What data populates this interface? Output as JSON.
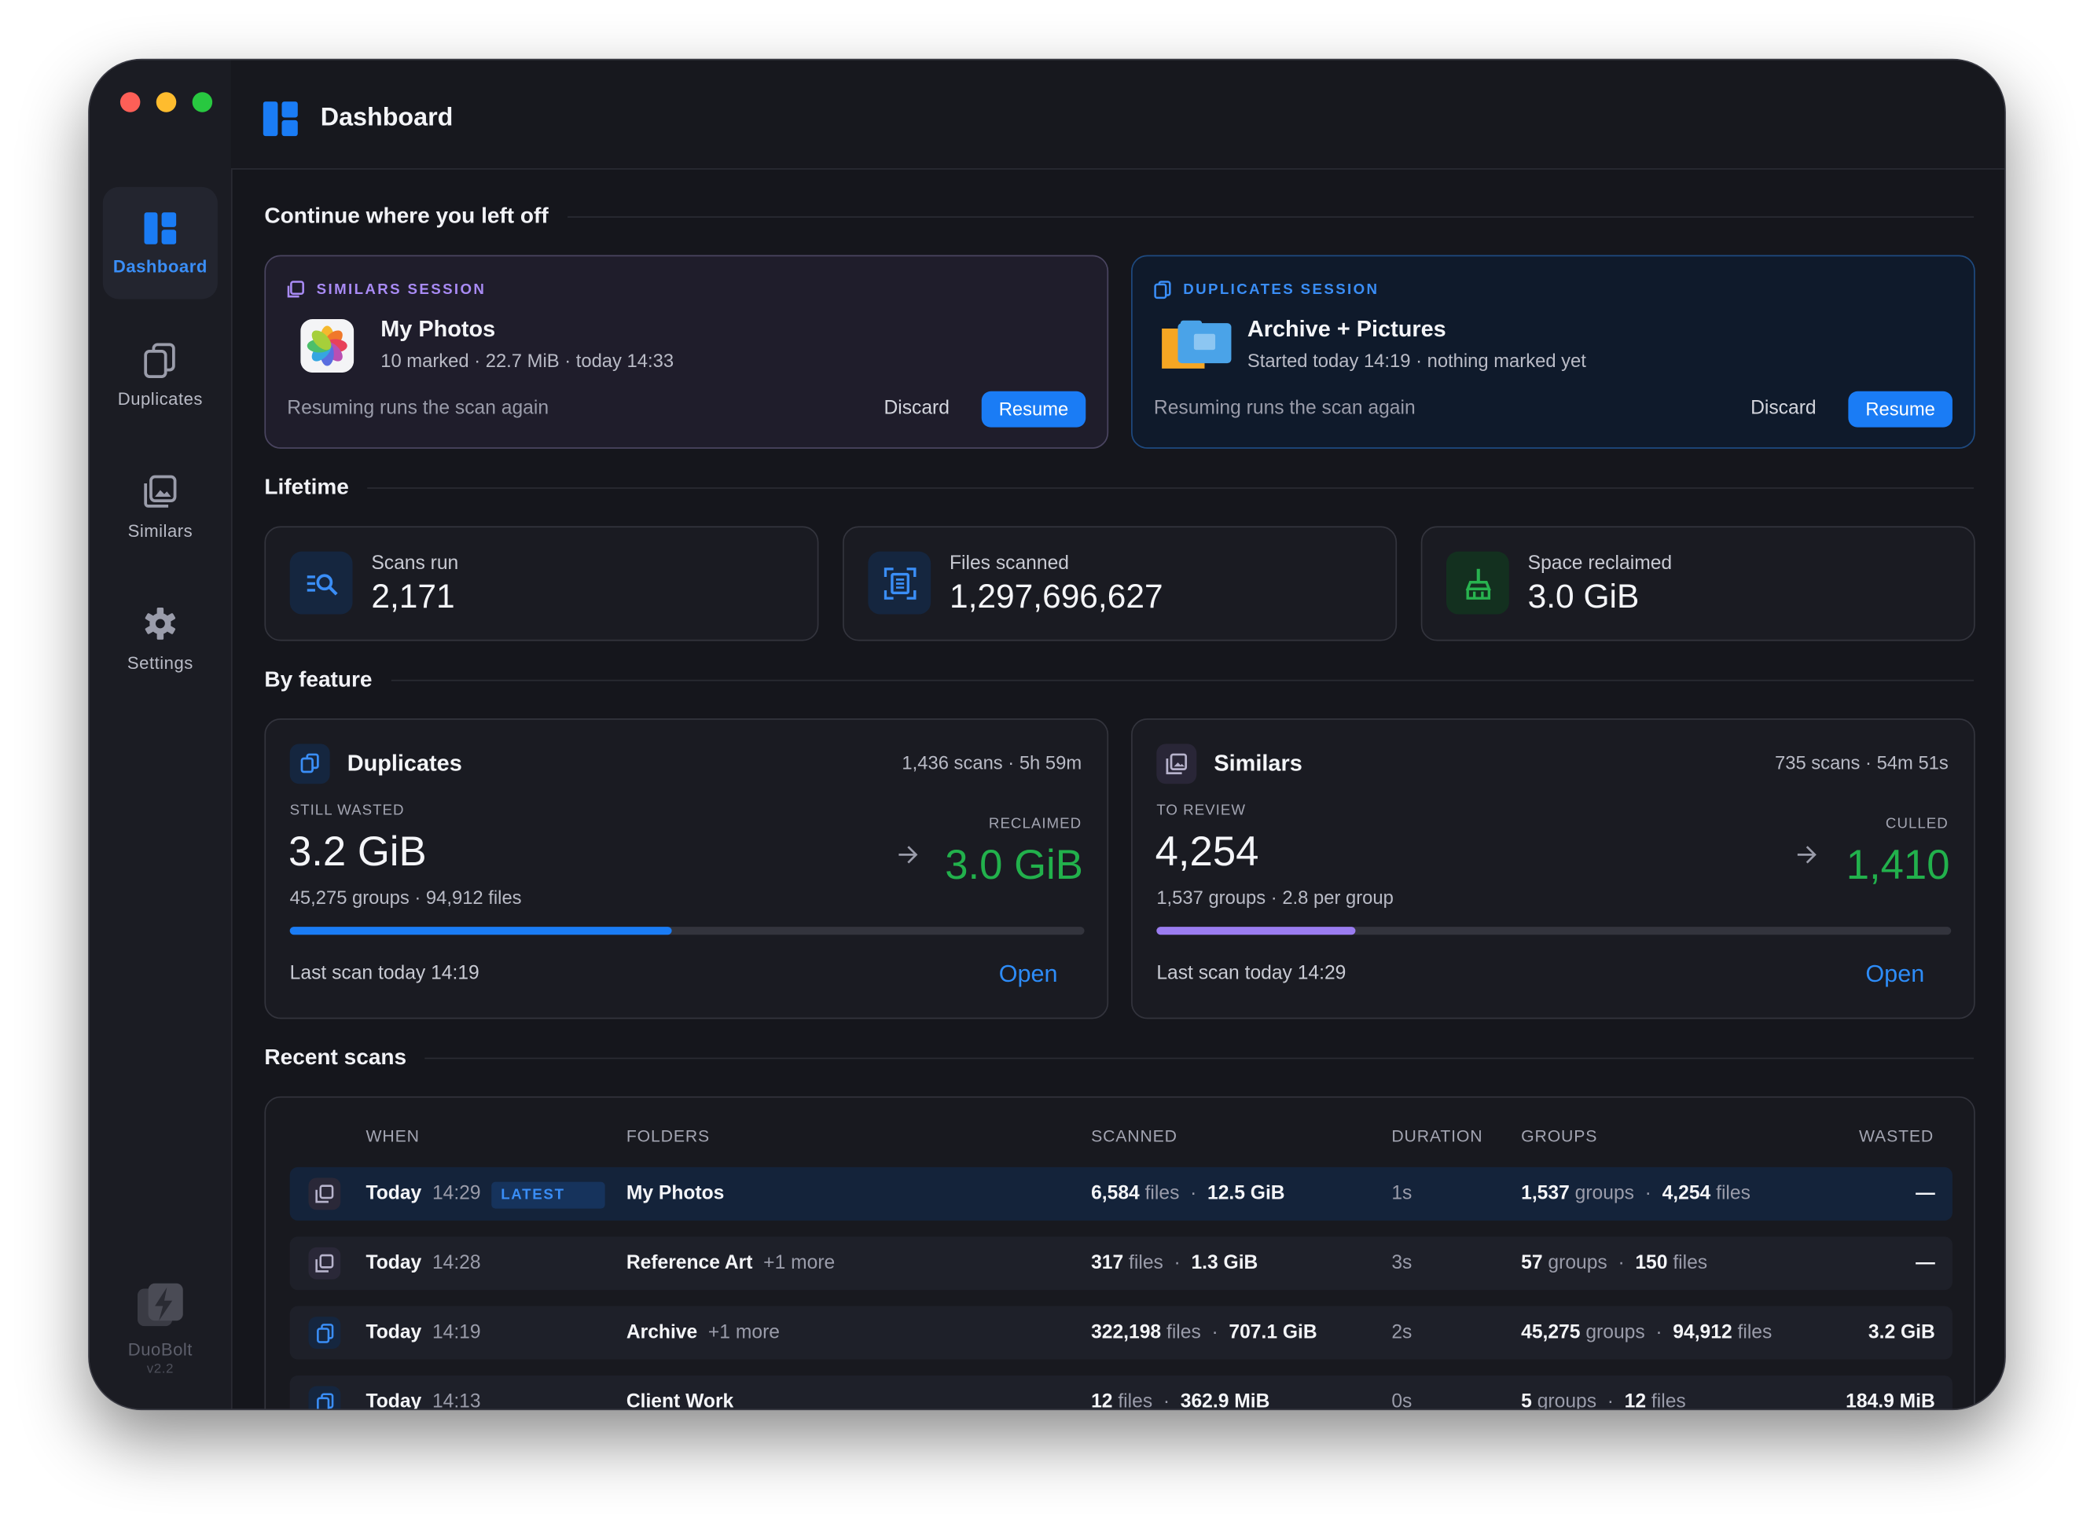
{
  "window": {
    "title": "Dashboard"
  },
  "sidebar": {
    "items": [
      {
        "label": "Dashboard"
      },
      {
        "label": "Duplicates"
      },
      {
        "label": "Similars"
      },
      {
        "label": "Settings"
      }
    ],
    "brand": "DuoBolt",
    "version": "v2.2"
  },
  "continue": {
    "heading": "Continue where you left off",
    "sessions": [
      {
        "kind": "SIMILARS SESSION",
        "name": "My Photos",
        "detail": "10 marked · 22.7 MiB · today 14:33",
        "note": "Resuming runs the scan again",
        "discard": "Discard",
        "resume": "Resume"
      },
      {
        "kind": "DUPLICATES SESSION",
        "name": "Archive + Pictures",
        "detail": "Started today 14:19 · nothing marked yet",
        "note": "Resuming runs the scan again",
        "discard": "Discard",
        "resume": "Resume"
      }
    ]
  },
  "lifetime": {
    "heading": "Lifetime",
    "stats": [
      {
        "label": "Scans run",
        "value": "2,171"
      },
      {
        "label": "Files scanned",
        "value": "1,297,696,627"
      },
      {
        "label": "Space reclaimed",
        "value": "3.0 GiB"
      }
    ]
  },
  "features": {
    "heading": "By feature",
    "cards": [
      {
        "name": "Duplicates",
        "meta": "1,436 scans · 5h 59m",
        "primary_label": "STILL WASTED",
        "primary": "3.2 GiB",
        "sub": "45,275 groups · 94,912 files",
        "secondary_label": "RECLAIMED",
        "secondary": "3.0 GiB",
        "progress": 48,
        "last": "Last scan today 14:19",
        "open": "Open"
      },
      {
        "name": "Similars",
        "meta": "735 scans · 54m 51s",
        "primary_label": "TO REVIEW",
        "primary": "4,254",
        "sub": "1,537 groups · 2.8 per group",
        "secondary_label": "CULLED",
        "secondary": "1,410",
        "progress": 25,
        "last": "Last scan today 14:29",
        "open": "Open"
      }
    ]
  },
  "recent": {
    "heading": "Recent scans",
    "columns": [
      "WHEN",
      "FOLDERS",
      "SCANNED",
      "DURATION",
      "GROUPS",
      "WASTED"
    ],
    "units": {
      "files": "files",
      "groups": "groups"
    },
    "rows": [
      {
        "when": "Today",
        "time": "14:29",
        "badge": "LATEST",
        "folder": "My Photos",
        "files": "6,584",
        "size": "12.5 GiB",
        "duration": "1s",
        "groups": "1,537",
        "group_files": "4,254",
        "wasted": "—"
      },
      {
        "when": "Today",
        "time": "14:28",
        "folder": "Reference Art",
        "more": "+1 more",
        "files": "317",
        "size": "1.3 GiB",
        "duration": "3s",
        "groups": "57",
        "group_files": "150",
        "wasted": "—"
      },
      {
        "when": "Today",
        "time": "14:19",
        "folder": "Archive",
        "more": "+1 more",
        "files": "322,198",
        "size": "707.1 GiB",
        "duration": "2s",
        "groups": "45,275",
        "group_files": "94,912",
        "wasted": "3.2 GiB"
      },
      {
        "when": "Today",
        "time": "14:13",
        "folder": "Client Work",
        "files": "12",
        "size": "362.9 MiB",
        "duration": "0s",
        "groups": "5",
        "group_files": "12",
        "wasted": "184.9 MiB"
      }
    ]
  }
}
